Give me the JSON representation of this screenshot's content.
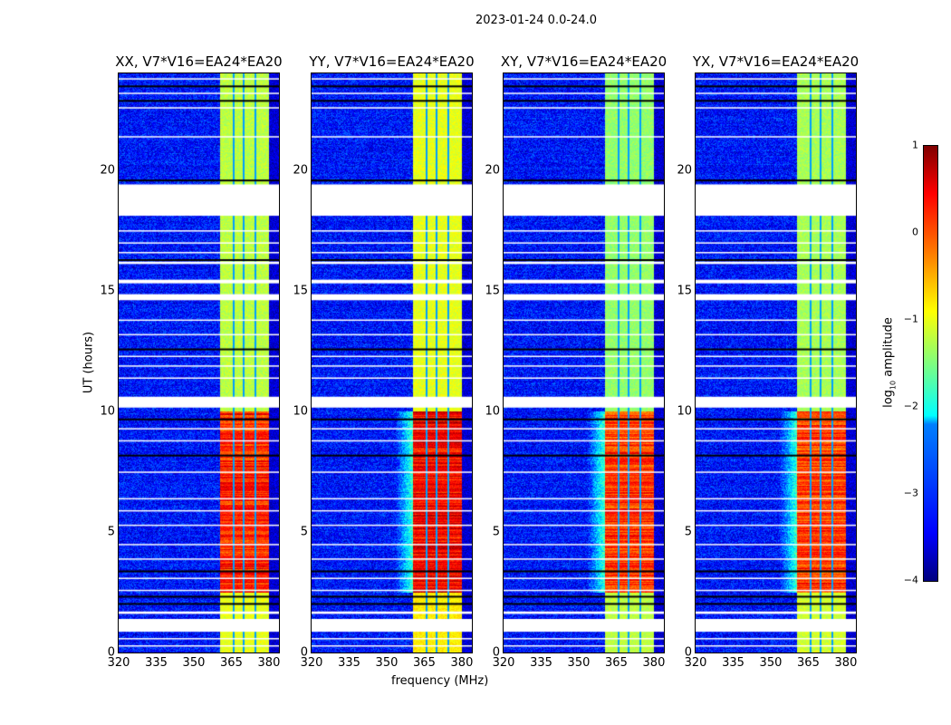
{
  "chart_data": {
    "type": "heatmap",
    "title": "2023-01-24 0.0-24.0",
    "xlabel": "frequency (MHz)",
    "ylabel": "UT (hours)",
    "xlim": [
      320,
      384
    ],
    "ylim": [
      0,
      24
    ],
    "xticks": [
      "320",
      "335",
      "350",
      "365",
      "380"
    ],
    "xtick_values": [
      320,
      335,
      350,
      365,
      380
    ],
    "yticks": [
      "0",
      "5",
      "10",
      "15",
      "20"
    ],
    "ytick_values": [
      0,
      5,
      10,
      15,
      20
    ],
    "colorbar": {
      "label": "log10 amplitude",
      "label_main": "log",
      "label_sub": "10",
      "label_rest": " amplitude",
      "range": [
        -4,
        1
      ],
      "ticks": [
        "1",
        "0",
        "−1",
        "−2",
        "−3",
        "−4"
      ],
      "tick_values": [
        1,
        0,
        -1,
        -2,
        -3,
        -4
      ],
      "colormap": "jet"
    },
    "panels": [
      {
        "title": "XX, V7*V16=EA24*EA20",
        "background": -3.3,
        "band_day": -1.2,
        "band_night": 0.2
      },
      {
        "title": "YY, V7*V16=EA24*EA20",
        "background": -3.3,
        "band_day": -1.0,
        "band_night": 0.4
      },
      {
        "title": "XY, V7*V16=EA24*EA20",
        "background": -3.3,
        "band_day": -1.4,
        "band_night": 0.1
      },
      {
        "title": "YX, V7*V16=EA24*EA20",
        "background": -3.3,
        "band_day": -1.3,
        "band_night": 0.1
      }
    ],
    "rfi_band_mhz": [
      360.4,
      380
    ],
    "channel_gaps_mhz": [
      365.6,
      369.8,
      374.3
    ],
    "flagged_gaps_hours": [
      [
        18.1,
        19.4
      ],
      [
        10.15,
        10.6
      ],
      [
        14.6,
        14.85
      ],
      [
        0.86,
        1.39
      ],
      [
        15.3,
        15.45
      ],
      [
        16.1,
        16.2
      ],
      [
        1.6,
        1.7
      ]
    ],
    "black_rows_hours": [
      23.5,
      22.9,
      19.6,
      9.7,
      8.2,
      3.4,
      2.35,
      2.05,
      12.6,
      16.3
    ],
    "white_rows_hours": [
      23.8,
      23.2,
      22.6,
      21.4,
      17.5,
      17.0,
      16.6,
      13.8,
      13.2,
      12.3,
      11.9,
      11.4,
      9.3,
      8.8,
      7.5,
      6.4,
      5.9,
      5.3,
      4.5,
      3.9,
      3.1,
      2.6,
      0.6,
      0.3
    ]
  }
}
